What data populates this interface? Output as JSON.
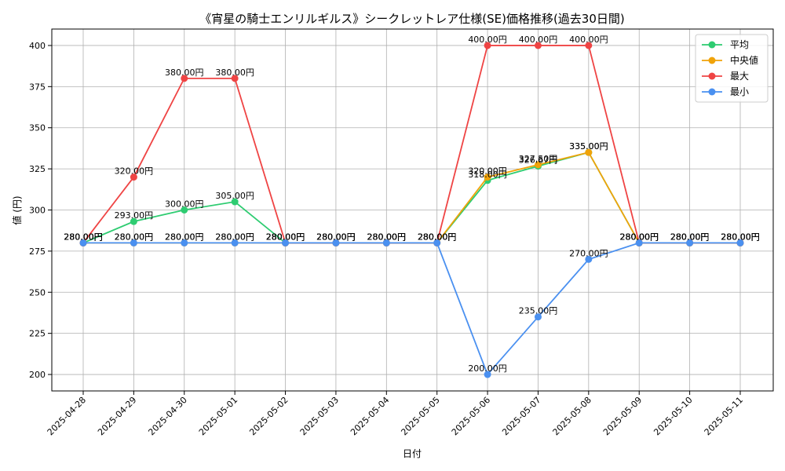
{
  "chart_data": {
    "type": "line",
    "title": "《宵星の騎士エンリルギルス》シークレットレア仕様(SE)価格推移(過去30日間)",
    "xlabel": "日付",
    "ylabel": "値 (円)",
    "ylim": [
      190,
      410
    ],
    "yticks": [
      200,
      225,
      250,
      275,
      300,
      325,
      350,
      375,
      400
    ],
    "grid": true,
    "legend_position": "top-right",
    "value_suffix": "円",
    "categories": [
      "2025-04-28",
      "2025-04-29",
      "2025-04-30",
      "2025-05-01",
      "2025-05-02",
      "2025-05-03",
      "2025-05-04",
      "2025-05-05",
      "2025-05-06",
      "2025-05-07",
      "2025-05-08",
      "2025-05-09",
      "2025-05-10",
      "2025-05-11"
    ],
    "series": [
      {
        "name": "平均",
        "color": "#2ecc71",
        "values": [
          280,
          293,
          300,
          305,
          280,
          280,
          280,
          280,
          318,
          326.67,
          335,
          280,
          280,
          280
        ],
        "labels": [
          "280.00円",
          "293.00円",
          "300.00円",
          "305.00円",
          "280.00円",
          "280.00円",
          "280.00円",
          "280.00円",
          "318.00円",
          "326.67円",
          "335.00円",
          "280.00円",
          "280.00円",
          "280.00円"
        ]
      },
      {
        "name": "中央値",
        "color": "#f0a30a",
        "values": [
          280,
          280,
          280,
          280,
          280,
          280,
          280,
          280,
          320,
          327.5,
          335,
          280,
          280,
          280
        ],
        "labels": [
          "280.00円",
          "280.00円",
          "280.00円",
          "280.00円",
          "280.00円",
          "280.00円",
          "280.00円",
          "280.00円",
          "320.00円",
          "327.50円",
          "335.00円",
          "280.00円",
          "280.00円",
          "280.00円"
        ]
      },
      {
        "name": "最大",
        "color": "#ef4444",
        "values": [
          280,
          320,
          380,
          380,
          280,
          280,
          280,
          280,
          400,
          400,
          400,
          280,
          280,
          280
        ],
        "labels": [
          "280.00円",
          "320.00円",
          "380.00円",
          "380.00円",
          "280.00円",
          "280.00円",
          "280.00円",
          "280.00円",
          "400.00円",
          "400.00円",
          "400.00円",
          "280.00円",
          "280.00円",
          "280.00円"
        ]
      },
      {
        "name": "最小",
        "color": "#4a90f0",
        "values": [
          280,
          280,
          280,
          280,
          280,
          280,
          280,
          280,
          200,
          235,
          270,
          280,
          280,
          280
        ],
        "labels": [
          "280.00円",
          "280.00円",
          "280.00円",
          "280.00円",
          "280.00円",
          "280.00円",
          "280.00円",
          "280.00円",
          "200.00円",
          "235.00円",
          "270.00円",
          "280.00円",
          "280.00円",
          "280.00円"
        ]
      }
    ]
  }
}
